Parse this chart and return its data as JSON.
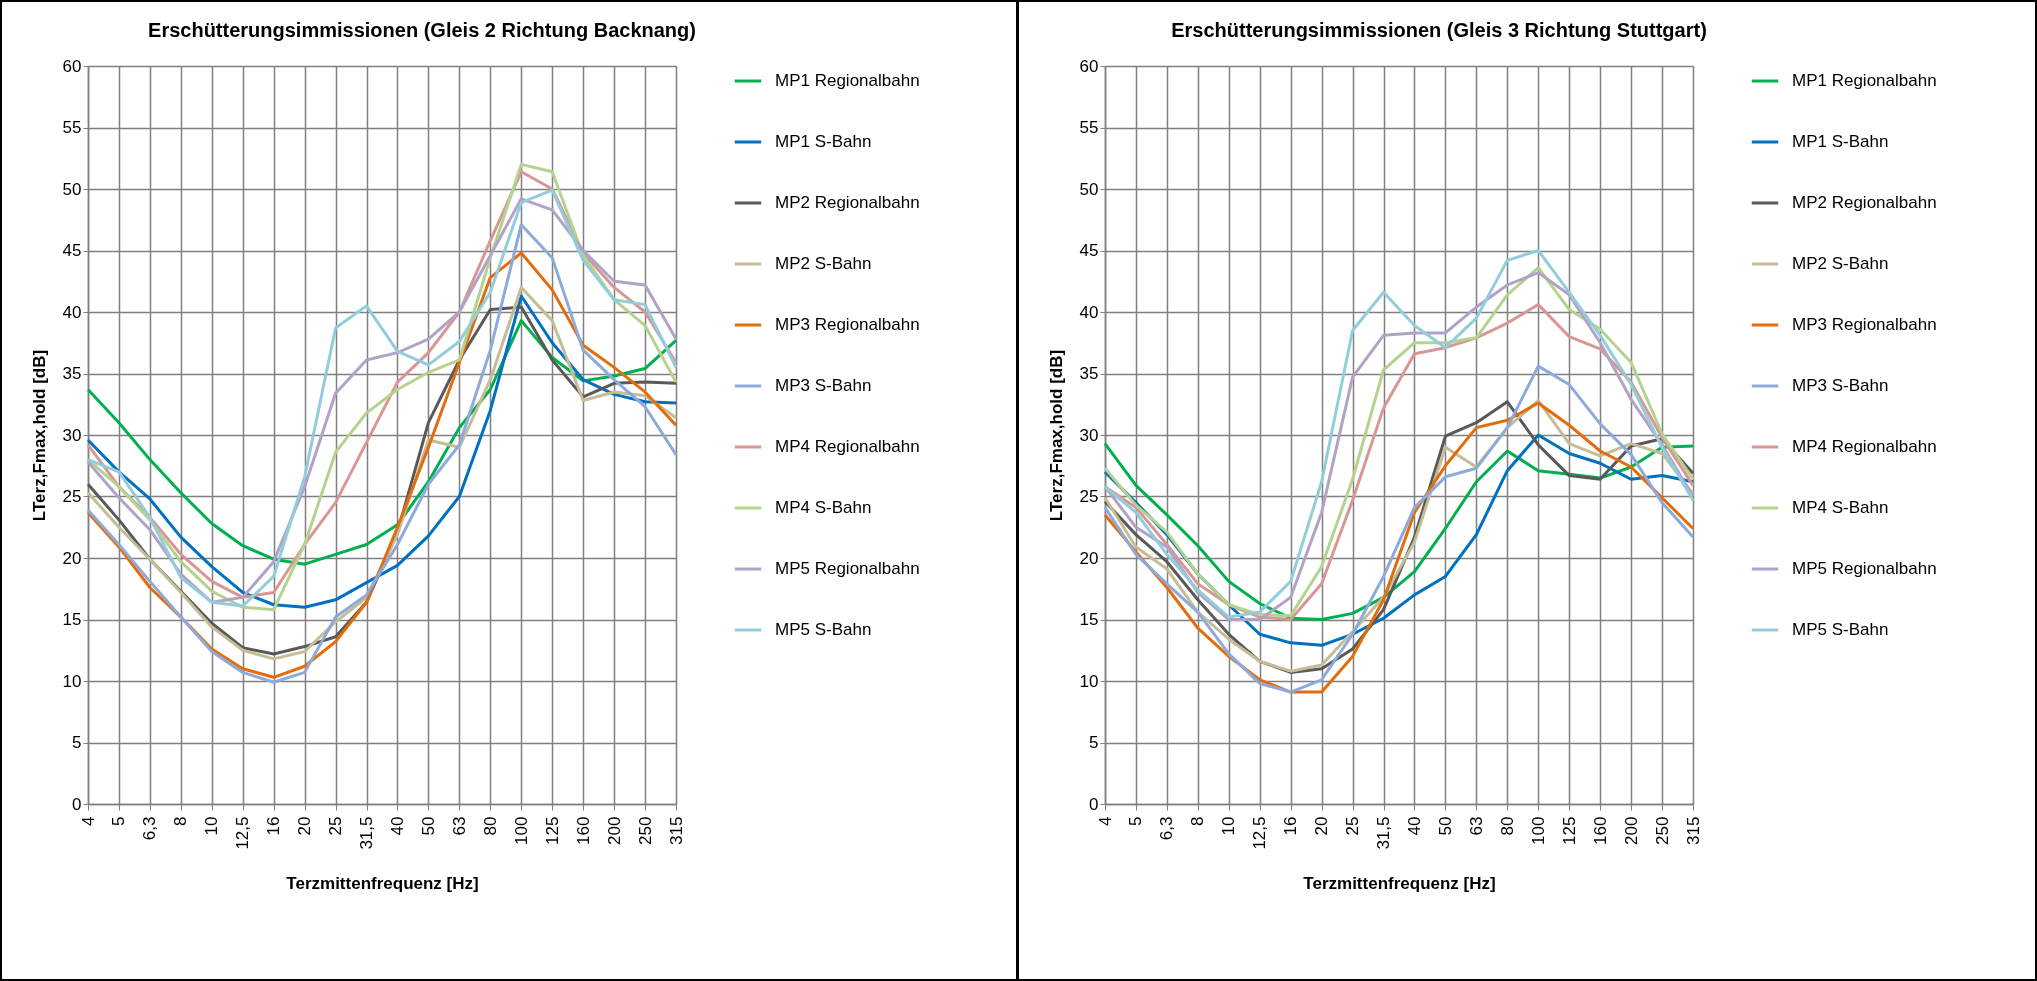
{
  "chart_data": [
    {
      "type": "line",
      "title": "Erschütterungsimmissionen (Gleis 2 Richtung Backnang)",
      "xlabel": "Terzmittenfrequenz [Hz]",
      "ylabel": "LTerz,Fmax,hold [dB]",
      "categories": [
        "4",
        "5",
        "6,3",
        "8",
        "10",
        "12,5",
        "16",
        "20",
        "25",
        "31,5",
        "40",
        "50",
        "63",
        "80",
        "100",
        "125",
        "160",
        "200",
        "250",
        "315"
      ],
      "ylim": [
        0,
        60
      ],
      "yticks": [
        0,
        5,
        10,
        15,
        20,
        25,
        30,
        35,
        40,
        45,
        50,
        55,
        60
      ],
      "grid": true,
      "legend": "right",
      "series": [
        {
          "name": "MP1 Regionalbahn",
          "color": "#00b050",
          "values": [
            33.7,
            31.0,
            28.0,
            25.3,
            22.8,
            21.0,
            19.9,
            19.5,
            20.3,
            21.1,
            22.7,
            26.2,
            30.6,
            33.7,
            39.3,
            36.3,
            34.4,
            34.8,
            35.4,
            37.7
          ]
        },
        {
          "name": "MP1 S-Bahn",
          "color": "#0070c0",
          "values": [
            29.6,
            27.0,
            24.8,
            21.7,
            19.3,
            17.2,
            16.2,
            16.0,
            16.6,
            18.0,
            19.4,
            21.8,
            25.0,
            32.0,
            41.3,
            37.5,
            34.5,
            33.3,
            32.7,
            32.6
          ]
        },
        {
          "name": "MP2 Regionalbahn",
          "color": "#595959",
          "values": [
            26.0,
            23.1,
            19.9,
            17.3,
            14.7,
            12.7,
            12.2,
            12.8,
            13.6,
            16.4,
            22.1,
            31.0,
            36.1,
            40.2,
            40.4,
            36.1,
            33.1,
            34.2,
            34.3,
            34.2
          ]
        },
        {
          "name": "MP2 S-Bahn",
          "color": "#c4bd97",
          "values": [
            25.3,
            22.5,
            19.9,
            17.2,
            14.4,
            12.5,
            11.8,
            12.4,
            14.8,
            16.8,
            21.9,
            29.6,
            29.0,
            34.5,
            42.0,
            39.3,
            32.8,
            33.5,
            33.2,
            31.4
          ]
        },
        {
          "name": "MP3 Regionalbahn",
          "color": "#e46c0a",
          "values": [
            23.7,
            20.9,
            17.6,
            15.2,
            12.6,
            11.0,
            10.3,
            11.2,
            13.2,
            16.4,
            22.5,
            29.0,
            35.9,
            42.8,
            44.8,
            41.8,
            37.3,
            35.5,
            33.5,
            30.8
          ]
        },
        {
          "name": "MP3 S-Bahn",
          "color": "#8eaadb",
          "values": [
            23.9,
            21.1,
            18.1,
            15.2,
            12.4,
            10.7,
            9.9,
            10.7,
            15.2,
            17.0,
            21.1,
            26.0,
            29.2,
            36.9,
            47.1,
            44.4,
            36.9,
            34.5,
            32.3,
            28.4
          ]
        },
        {
          "name": "MP4 Regionalbahn",
          "color": "#d99694",
          "values": [
            29.2,
            25.8,
            23.3,
            20.3,
            18.1,
            16.8,
            17.2,
            21.1,
            24.5,
            29.4,
            34.3,
            36.7,
            40.0,
            45.8,
            51.4,
            50.0,
            44.8,
            42.0,
            40.0,
            35.9
          ]
        },
        {
          "name": "MP4 S-Bahn",
          "color": "#b4d38f",
          "values": [
            28.0,
            25.8,
            23.1,
            19.7,
            17.3,
            16.0,
            15.8,
            21.1,
            28.6,
            31.8,
            33.7,
            35.1,
            36.1,
            44.4,
            52.0,
            51.4,
            44.6,
            41.0,
            38.9,
            34.3
          ]
        },
        {
          "name": "MP5 Regionalbahn",
          "color": "#b3a2c7",
          "values": [
            27.8,
            24.9,
            22.3,
            18.7,
            16.4,
            16.8,
            19.7,
            25.8,
            33.4,
            36.1,
            36.7,
            37.8,
            40.0,
            44.6,
            49.2,
            48.3,
            45.0,
            42.5,
            42.2,
            37.8
          ]
        },
        {
          "name": "MP5 S-Bahn",
          "color": "#92cddc",
          "values": [
            28.0,
            27.0,
            23.3,
            18.4,
            16.4,
            16.1,
            18.5,
            26.6,
            38.7,
            40.5,
            36.8,
            35.7,
            37.6,
            41.6,
            48.9,
            49.9,
            44.2,
            41.0,
            40.6,
            35.5
          ]
        }
      ]
    },
    {
      "type": "line",
      "title": "Erschütterungsimmissionen (Gleis 3 Richtung Stuttgart)",
      "xlabel": "Terzmittenfrequenz [Hz]",
      "ylabel": "LTerz,Fmax,hold [dB]",
      "categories": [
        "4",
        "5",
        "6,3",
        "8",
        "10",
        "12,5",
        "16",
        "20",
        "25",
        "31,5",
        "40",
        "50",
        "63",
        "80",
        "100",
        "125",
        "160",
        "200",
        "250",
        "315"
      ],
      "ylim": [
        0,
        60
      ],
      "yticks": [
        0,
        5,
        10,
        15,
        20,
        25,
        30,
        35,
        40,
        45,
        50,
        55,
        60
      ],
      "grid": true,
      "legend": "right",
      "series": [
        {
          "name": "MP1 Regionalbahn",
          "color": "#00b050",
          "values": [
            29.3,
            25.9,
            23.5,
            21.0,
            18.1,
            16.3,
            15.1,
            15.0,
            15.5,
            16.8,
            18.9,
            22.4,
            26.2,
            28.7,
            27.1,
            26.8,
            26.5,
            27.4,
            29.0,
            29.1
          ]
        },
        {
          "name": "MP1 S-Bahn",
          "color": "#0070c0",
          "values": [
            27.0,
            24.5,
            21.9,
            18.7,
            16.2,
            13.8,
            13.1,
            12.9,
            13.8,
            15.1,
            17.0,
            18.5,
            21.9,
            27.1,
            30.0,
            28.5,
            27.7,
            26.4,
            26.7,
            26.2
          ]
        },
        {
          "name": "MP2 Regionalbahn",
          "color": "#595959",
          "values": [
            24.6,
            21.9,
            19.7,
            16.6,
            13.8,
            11.6,
            10.7,
            11.0,
            12.6,
            15.8,
            21.7,
            29.9,
            31.0,
            32.7,
            29.2,
            26.7,
            26.4,
            29.1,
            29.7,
            26.9
          ]
        },
        {
          "name": "MP2 S-Bahn",
          "color": "#c4bd97",
          "values": [
            24.9,
            20.9,
            19.1,
            15.6,
            13.4,
            11.6,
            10.8,
            11.3,
            14.0,
            16.8,
            21.3,
            29.0,
            27.4,
            30.6,
            32.8,
            29.3,
            28.3,
            29.3,
            28.5,
            25.2
          ]
        },
        {
          "name": "MP3 Regionalbahn",
          "color": "#e46c0a",
          "values": [
            23.5,
            20.5,
            17.6,
            14.3,
            12.0,
            10.1,
            9.1,
            9.1,
            12.0,
            16.6,
            23.7,
            27.5,
            30.6,
            31.2,
            32.6,
            30.8,
            28.7,
            27.4,
            24.9,
            22.4
          ]
        },
        {
          "name": "MP3 S-Bahn",
          "color": "#8eaadb",
          "values": [
            24.1,
            20.3,
            17.9,
            15.6,
            12.2,
            9.8,
            9.1,
            10.1,
            13.8,
            18.5,
            24.1,
            26.6,
            27.3,
            30.6,
            35.6,
            34.1,
            30.9,
            28.4,
            24.5,
            21.7
          ]
        },
        {
          "name": "MP4 Regionalbahn",
          "color": "#d99694",
          "values": [
            25.8,
            24.1,
            21.1,
            17.9,
            16.2,
            15.2,
            15.0,
            17.9,
            24.7,
            32.2,
            36.6,
            37.1,
            37.9,
            39.1,
            40.6,
            38.0,
            37.0,
            34.3,
            29.8,
            25.9
          ]
        },
        {
          "name": "MP4 S-Bahn",
          "color": "#b4d38f",
          "values": [
            27.3,
            24.3,
            22.1,
            18.7,
            16.2,
            15.4,
            15.3,
            19.3,
            26.4,
            35.3,
            37.5,
            37.5,
            37.9,
            41.4,
            43.6,
            40.2,
            38.6,
            35.9,
            30.1,
            26.4
          ]
        },
        {
          "name": "MP5 Regionalbahn",
          "color": "#b3a2c7",
          "values": [
            25.8,
            22.5,
            20.9,
            17.2,
            15.0,
            15.0,
            16.8,
            23.7,
            34.7,
            38.1,
            38.3,
            38.3,
            40.4,
            42.2,
            43.2,
            41.4,
            37.5,
            32.9,
            29.2,
            25.0
          ]
        },
        {
          "name": "MP5 S-Bahn",
          "color": "#92cddc",
          "values": [
            25.8,
            23.7,
            20.3,
            17.4,
            15.2,
            15.6,
            18.1,
            26.2,
            38.5,
            41.6,
            38.9,
            37.1,
            39.5,
            44.2,
            45.0,
            41.6,
            38.1,
            34.1,
            29.0,
            24.7
          ]
        }
      ]
    }
  ]
}
